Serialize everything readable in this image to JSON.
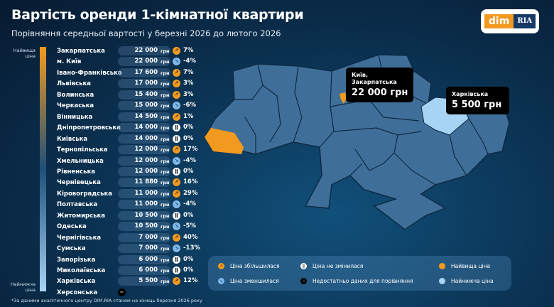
{
  "title": "Вартість оренди 1-кімнатної квартири",
  "subtitle": "Порівняння середньої вартості у березні 2026 до лютого 2026",
  "logo": {
    "text": "dim RIA",
    "part1": "dim",
    "part2": "RIA"
  },
  "scale": {
    "high": "Найвища ціна",
    "low": "Найнижча ціна"
  },
  "currency": "грн",
  "rows": [
    {
      "name": "Закарпатська",
      "price": "22 000",
      "trend": "up",
      "change": "7%"
    },
    {
      "name": "м. Київ",
      "price": "22 000",
      "trend": "down",
      "change": "-4%"
    },
    {
      "name": "Івано-Франківська",
      "price": "17 600",
      "trend": "up",
      "change": "7%"
    },
    {
      "name": "Львівська",
      "price": "17 000",
      "trend": "up",
      "change": "3%"
    },
    {
      "name": "Волинська",
      "price": "15 400",
      "trend": "up",
      "change": "3%"
    },
    {
      "name": "Черкаська",
      "price": "15 000",
      "trend": "down",
      "change": "-6%"
    },
    {
      "name": "Вінницька",
      "price": "14 500",
      "trend": "up",
      "change": "1%"
    },
    {
      "name": "Дніпропетровська",
      "price": "14 000",
      "trend": "same",
      "change": "0%"
    },
    {
      "name": "Київська",
      "price": "14 000",
      "trend": "same",
      "change": "0%"
    },
    {
      "name": "Тернопільська",
      "price": "12 000",
      "trend": "up",
      "change": "17%"
    },
    {
      "name": "Хмельницька",
      "price": "12 000",
      "trend": "down",
      "change": "-4%"
    },
    {
      "name": "Рівненська",
      "price": "12 000",
      "trend": "same",
      "change": "0%"
    },
    {
      "name": "Чернівецька",
      "price": "11 880",
      "trend": "up",
      "change": "16%"
    },
    {
      "name": "Кіровоградська",
      "price": "11 000",
      "trend": "up",
      "change": "29%"
    },
    {
      "name": "Полтавська",
      "price": "11 000",
      "trend": "down",
      "change": "-4%"
    },
    {
      "name": "Житомирська",
      "price": "10 500",
      "trend": "same",
      "change": "0%"
    },
    {
      "name": "Одеська",
      "price": "10 500",
      "trend": "down",
      "change": "-5%"
    },
    {
      "name": "Чернігівська",
      "price": "7 000",
      "trend": "up",
      "change": "40%"
    },
    {
      "name": "Сумська",
      "price": "7 000",
      "trend": "down",
      "change": "-13%"
    },
    {
      "name": "Запорізька",
      "price": "6 000",
      "trend": "same",
      "change": "0%"
    },
    {
      "name": "Миколаївська",
      "price": "6 000",
      "trend": "same",
      "change": "0%"
    },
    {
      "name": "Харківська",
      "price": "5 500",
      "trend": "up",
      "change": "12%"
    },
    {
      "name": "Херсонська",
      "price": null,
      "trend": "none",
      "change": null
    }
  ],
  "map": {
    "highest": {
      "label": "Київ, Закарпатська",
      "line1": "Київ,",
      "line2": "Закарпатська",
      "value": "22 000 грн",
      "color": "#f29a1f"
    },
    "lowest": {
      "label": "Харківська",
      "value": "5 500 грн",
      "color": "#a7d4f5"
    },
    "region_color": "#3f6f99"
  },
  "legend": {
    "up": "Ціна збільшилася",
    "same": "Ціна не змінилася",
    "highest": "Найвища ціна",
    "down": "Ціна зменшилася",
    "none": "Недостатньо даних для порівняння",
    "lowest": "Найнижча ціна"
  },
  "footnote": "*За даними аналітичного центру DIM.RIA станом на кінець березня 2026 року"
}
